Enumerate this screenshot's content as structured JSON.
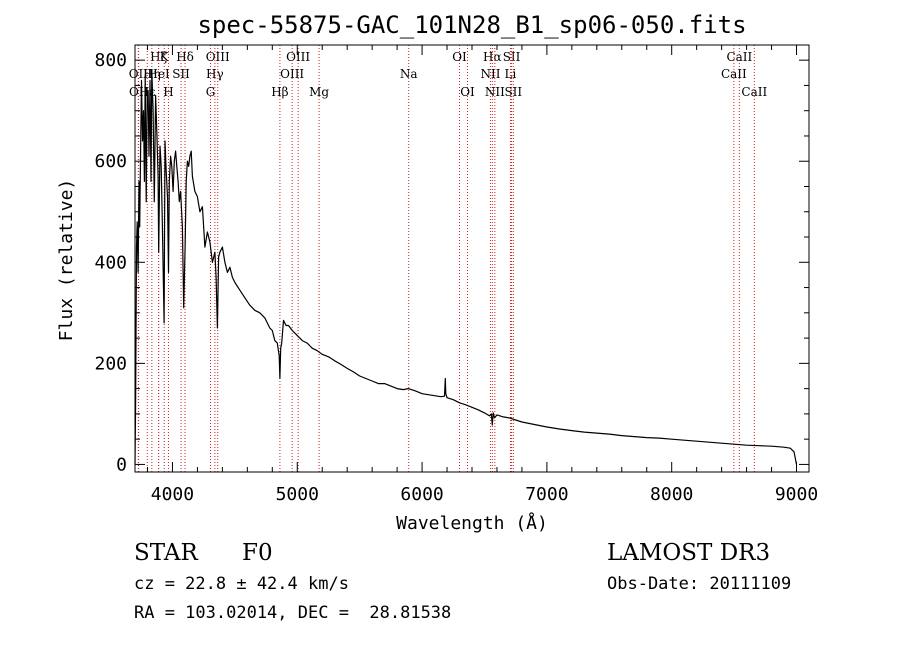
{
  "chart_data": {
    "type": "line",
    "title": "spec-55875-GAC_101N28_B1_sp06-050.fits",
    "xlabel": "Wavelength (Å)",
    "ylabel": "Flux (relative)",
    "xlim": [
      3700,
      9100
    ],
    "ylim": [
      -15,
      830
    ],
    "xticks": [
      4000,
      5000,
      6000,
      7000,
      8000,
      9000
    ],
    "yticks": [
      0,
      200,
      400,
      600,
      800
    ],
    "grid": false,
    "series": [
      {
        "name": "flux",
        "color": "#000000",
        "x": [
          3700,
          3705,
          3712,
          3718,
          3725,
          3732,
          3738,
          3745,
          3752,
          3760,
          3768,
          3775,
          3782,
          3790,
          3798,
          3805,
          3812,
          3820,
          3828,
          3835,
          3845,
          3855,
          3865,
          3875,
          3885,
          3890,
          3900,
          3910,
          3920,
          3933,
          3940,
          3950,
          3960,
          3968,
          3975,
          3985,
          3995,
          4005,
          4015,
          4025,
          4035,
          4045,
          4055,
          4065,
          4080,
          4090,
          4101,
          4110,
          4120,
          4130,
          4140,
          4150,
          4160,
          4180,
          4200,
          4220,
          4240,
          4260,
          4280,
          4300,
          4320,
          4340,
          4350,
          4360,
          4370,
          4380,
          4400,
          4420,
          4440,
          4460,
          4480,
          4500,
          4540,
          4580,
          4620,
          4660,
          4700,
          4740,
          4780,
          4800,
          4820,
          4840,
          4855,
          4861,
          4867,
          4875,
          4890,
          4910,
          4930,
          4960,
          5000,
          5040,
          5080,
          5120,
          5160,
          5200,
          5250,
          5300,
          5350,
          5400,
          5450,
          5500,
          5550,
          5600,
          5650,
          5700,
          5750,
          5800,
          5850,
          5890,
          5950,
          6000,
          6050,
          6100,
          6150,
          6180,
          6186,
          6190,
          6200,
          6250,
          6300,
          6350,
          6400,
          6450,
          6500,
          6540,
          6555,
          6563,
          6570,
          6580,
          6600,
          6650,
          6700,
          6800,
          6900,
          7000,
          7100,
          7200,
          7300,
          7400,
          7500,
          7600,
          7700,
          7800,
          7900,
          8000,
          8100,
          8200,
          8300,
          8400,
          8500,
          8600,
          8700,
          8800,
          8900,
          8950,
          8980,
          9000
        ],
        "values": [
          0,
          120,
          430,
          480,
          380,
          560,
          470,
          620,
          760,
          640,
          700,
          560,
          770,
          520,
          730,
          740,
          610,
          760,
          560,
          780,
          700,
          520,
          730,
          660,
          570,
          420,
          630,
          590,
          460,
          280,
          640,
          580,
          530,
          380,
          560,
          610,
          590,
          540,
          600,
          620,
          590,
          560,
          520,
          540,
          470,
          310,
          430,
          560,
          600,
          590,
          610,
          620,
          570,
          540,
          530,
          500,
          510,
          430,
          460,
          440,
          400,
          420,
          370,
          270,
          410,
          420,
          430,
          400,
          380,
          390,
          370,
          360,
          345,
          330,
          315,
          305,
          300,
          290,
          270,
          265,
          245,
          240,
          215,
          170,
          230,
          240,
          285,
          275,
          275,
          265,
          255,
          245,
          240,
          230,
          225,
          218,
          213,
          205,
          198,
          190,
          183,
          175,
          170,
          165,
          160,
          160,
          155,
          150,
          148,
          150,
          145,
          140,
          138,
          136,
          134,
          135,
          170,
          140,
          132,
          128,
          122,
          118,
          113,
          108,
          102,
          96,
          100,
          78,
          102,
          92,
          98,
          94,
          92,
          84,
          79,
          74,
          70,
          67,
          64,
          62,
          60,
          57,
          55,
          53,
          52,
          50,
          48,
          46,
          44,
          42,
          40,
          38,
          37,
          36,
          34,
          32,
          25,
          0
        ]
      }
    ],
    "lines": [
      {
        "name": "Hζ",
        "wave": 3889,
        "row": 1
      },
      {
        "name": "OII",
        "wave": 3727,
        "row": 2
      },
      {
        "name": "OII",
        "wave": 3729,
        "row": 3
      },
      {
        "name": "Hε",
        "wave": 3798,
        "row": 3
      },
      {
        "name": "Hη",
        "wave": 3835,
        "row": 2
      },
      {
        "name": "K",
        "wave": 3934,
        "row": 1
      },
      {
        "name": "HeI",
        "wave": 3889,
        "row": 2
      },
      {
        "name": "H",
        "wave": 3968,
        "row": 3
      },
      {
        "name": "Hδ",
        "wave": 4101,
        "row": 1
      },
      {
        "name": "SII",
        "wave": 4069,
        "row": 2
      },
      {
        "name": "OIII",
        "wave": 4363,
        "row": 1
      },
      {
        "name": "Hγ",
        "wave": 4340,
        "row": 2
      },
      {
        "name": "G",
        "wave": 4305,
        "row": 3
      },
      {
        "name": "Hβ",
        "wave": 4861,
        "row": 3
      },
      {
        "name": "OIII",
        "wave": 5007,
        "row": 1
      },
      {
        "name": "OIII",
        "wave": 4959,
        "row": 2
      },
      {
        "name": "Mg",
        "wave": 5175,
        "row": 3
      },
      {
        "name": "Na",
        "wave": 5893,
        "row": 2
      },
      {
        "name": "OI",
        "wave": 6300,
        "row": 1
      },
      {
        "name": "OI",
        "wave": 6364,
        "row": 3
      },
      {
        "name": "Hα",
        "wave": 6563,
        "row": 1
      },
      {
        "name": "NII",
        "wave": 6548,
        "row": 2
      },
      {
        "name": "NII",
        "wave": 6583,
        "row": 3
      },
      {
        "name": "SII",
        "wave": 6717,
        "row": 1
      },
      {
        "name": "Li",
        "wave": 6708,
        "row": 2
      },
      {
        "name": "SII",
        "wave": 6731,
        "row": 3
      },
      {
        "name": "CaII",
        "wave": 8542,
        "row": 1
      },
      {
        "name": "CaII",
        "wave": 8498,
        "row": 2
      },
      {
        "name": "CaII",
        "wave": 8662,
        "row": 3
      }
    ],
    "line_color": "#cc2222"
  },
  "info": {
    "class": "STAR",
    "subclass": "F0",
    "survey": "LAMOST DR3",
    "cz": "cz = 22.8 ± 42.4 km/s",
    "obs_date": "Obs-Date: 20111109",
    "radec": "RA = 103.02014, DEC =  28.81538"
  }
}
